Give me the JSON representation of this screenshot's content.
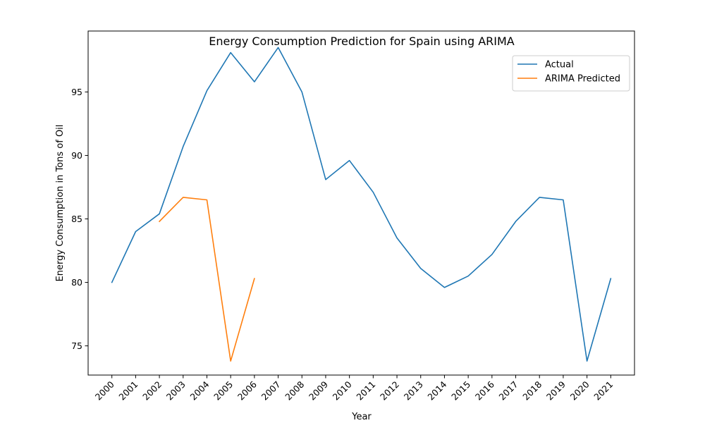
{
  "chart_data": {
    "type": "line",
    "title": "Energy Consumption Prediction for Spain using ARIMA",
    "xlabel": "Year",
    "ylabel": "Energy Consumption in Tons of Oil",
    "categories": [
      "2000",
      "2001",
      "2002",
      "2003",
      "2004",
      "2005",
      "2006",
      "2007",
      "2008",
      "2009",
      "2010",
      "2011",
      "2012",
      "2013",
      "2014",
      "2015",
      "2016",
      "2017",
      "2018",
      "2019",
      "2020",
      "2021"
    ],
    "xlim": [
      1999,
      2022
    ],
    "ylim": [
      72.7,
      99.8
    ],
    "yticks": [
      75,
      80,
      85,
      90,
      95
    ],
    "grid": false,
    "legend_position": "top-right",
    "series": [
      {
        "name": "Actual",
        "color": "#1f77b4",
        "x": [
          2000,
          2001,
          2002,
          2003,
          2004,
          2005,
          2006,
          2007,
          2008,
          2009,
          2010,
          2011,
          2012,
          2013,
          2014,
          2015,
          2016,
          2017,
          2018,
          2019,
          2020,
          2021
        ],
        "values": [
          80.0,
          84.0,
          85.4,
          90.7,
          95.1,
          98.1,
          95.8,
          98.5,
          95.0,
          88.1,
          89.6,
          87.1,
          83.5,
          81.1,
          79.6,
          80.5,
          82.2,
          84.8,
          86.7,
          86.5,
          73.8,
          80.3
        ]
      },
      {
        "name": "ARIMA Predicted",
        "color": "#ff7f0e",
        "x": [
          2002,
          2003,
          2004,
          2005,
          2006
        ],
        "values": [
          84.8,
          86.7,
          86.5,
          73.8,
          80.3
        ]
      }
    ]
  }
}
